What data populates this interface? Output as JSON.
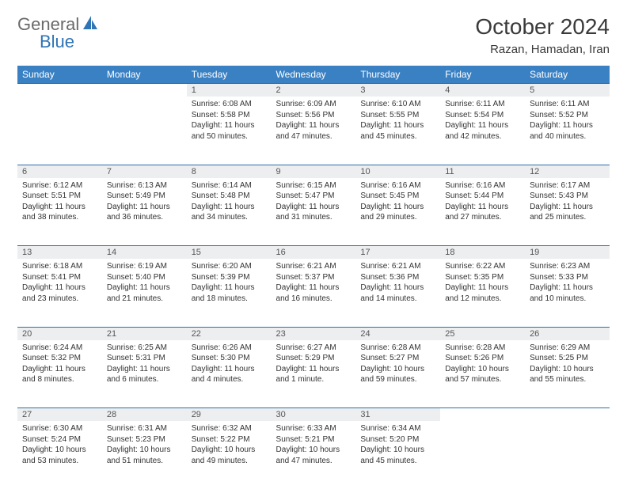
{
  "logo": {
    "text1": "General",
    "text2": "Blue"
  },
  "title": "October 2024",
  "location": "Razan, Hamadan, Iran",
  "header_color": "#3a81c4",
  "daynum_bg": "#eceeef",
  "border_color": "#2f6fa8",
  "columns": [
    "Sunday",
    "Monday",
    "Tuesday",
    "Wednesday",
    "Thursday",
    "Friday",
    "Saturday"
  ],
  "weeks": [
    [
      null,
      null,
      {
        "d": "1",
        "sr": "6:08 AM",
        "ss": "5:58 PM",
        "dl": "11 hours and 50 minutes."
      },
      {
        "d": "2",
        "sr": "6:09 AM",
        "ss": "5:56 PM",
        "dl": "11 hours and 47 minutes."
      },
      {
        "d": "3",
        "sr": "6:10 AM",
        "ss": "5:55 PM",
        "dl": "11 hours and 45 minutes."
      },
      {
        "d": "4",
        "sr": "6:11 AM",
        "ss": "5:54 PM",
        "dl": "11 hours and 42 minutes."
      },
      {
        "d": "5",
        "sr": "6:11 AM",
        "ss": "5:52 PM",
        "dl": "11 hours and 40 minutes."
      }
    ],
    [
      {
        "d": "6",
        "sr": "6:12 AM",
        "ss": "5:51 PM",
        "dl": "11 hours and 38 minutes."
      },
      {
        "d": "7",
        "sr": "6:13 AM",
        "ss": "5:49 PM",
        "dl": "11 hours and 36 minutes."
      },
      {
        "d": "8",
        "sr": "6:14 AM",
        "ss": "5:48 PM",
        "dl": "11 hours and 34 minutes."
      },
      {
        "d": "9",
        "sr": "6:15 AM",
        "ss": "5:47 PM",
        "dl": "11 hours and 31 minutes."
      },
      {
        "d": "10",
        "sr": "6:16 AM",
        "ss": "5:45 PM",
        "dl": "11 hours and 29 minutes."
      },
      {
        "d": "11",
        "sr": "6:16 AM",
        "ss": "5:44 PM",
        "dl": "11 hours and 27 minutes."
      },
      {
        "d": "12",
        "sr": "6:17 AM",
        "ss": "5:43 PM",
        "dl": "11 hours and 25 minutes."
      }
    ],
    [
      {
        "d": "13",
        "sr": "6:18 AM",
        "ss": "5:41 PM",
        "dl": "11 hours and 23 minutes."
      },
      {
        "d": "14",
        "sr": "6:19 AM",
        "ss": "5:40 PM",
        "dl": "11 hours and 21 minutes."
      },
      {
        "d": "15",
        "sr": "6:20 AM",
        "ss": "5:39 PM",
        "dl": "11 hours and 18 minutes."
      },
      {
        "d": "16",
        "sr": "6:21 AM",
        "ss": "5:37 PM",
        "dl": "11 hours and 16 minutes."
      },
      {
        "d": "17",
        "sr": "6:21 AM",
        "ss": "5:36 PM",
        "dl": "11 hours and 14 minutes."
      },
      {
        "d": "18",
        "sr": "6:22 AM",
        "ss": "5:35 PM",
        "dl": "11 hours and 12 minutes."
      },
      {
        "d": "19",
        "sr": "6:23 AM",
        "ss": "5:33 PM",
        "dl": "11 hours and 10 minutes."
      }
    ],
    [
      {
        "d": "20",
        "sr": "6:24 AM",
        "ss": "5:32 PM",
        "dl": "11 hours and 8 minutes."
      },
      {
        "d": "21",
        "sr": "6:25 AM",
        "ss": "5:31 PM",
        "dl": "11 hours and 6 minutes."
      },
      {
        "d": "22",
        "sr": "6:26 AM",
        "ss": "5:30 PM",
        "dl": "11 hours and 4 minutes."
      },
      {
        "d": "23",
        "sr": "6:27 AM",
        "ss": "5:29 PM",
        "dl": "11 hours and 1 minute."
      },
      {
        "d": "24",
        "sr": "6:28 AM",
        "ss": "5:27 PM",
        "dl": "10 hours and 59 minutes."
      },
      {
        "d": "25",
        "sr": "6:28 AM",
        "ss": "5:26 PM",
        "dl": "10 hours and 57 minutes."
      },
      {
        "d": "26",
        "sr": "6:29 AM",
        "ss": "5:25 PM",
        "dl": "10 hours and 55 minutes."
      }
    ],
    [
      {
        "d": "27",
        "sr": "6:30 AM",
        "ss": "5:24 PM",
        "dl": "10 hours and 53 minutes."
      },
      {
        "d": "28",
        "sr": "6:31 AM",
        "ss": "5:23 PM",
        "dl": "10 hours and 51 minutes."
      },
      {
        "d": "29",
        "sr": "6:32 AM",
        "ss": "5:22 PM",
        "dl": "10 hours and 49 minutes."
      },
      {
        "d": "30",
        "sr": "6:33 AM",
        "ss": "5:21 PM",
        "dl": "10 hours and 47 minutes."
      },
      {
        "d": "31",
        "sr": "6:34 AM",
        "ss": "5:20 PM",
        "dl": "10 hours and 45 minutes."
      },
      null,
      null
    ]
  ],
  "labels": {
    "sunrise": "Sunrise: ",
    "sunset": "Sunset: ",
    "daylight": "Daylight: "
  }
}
